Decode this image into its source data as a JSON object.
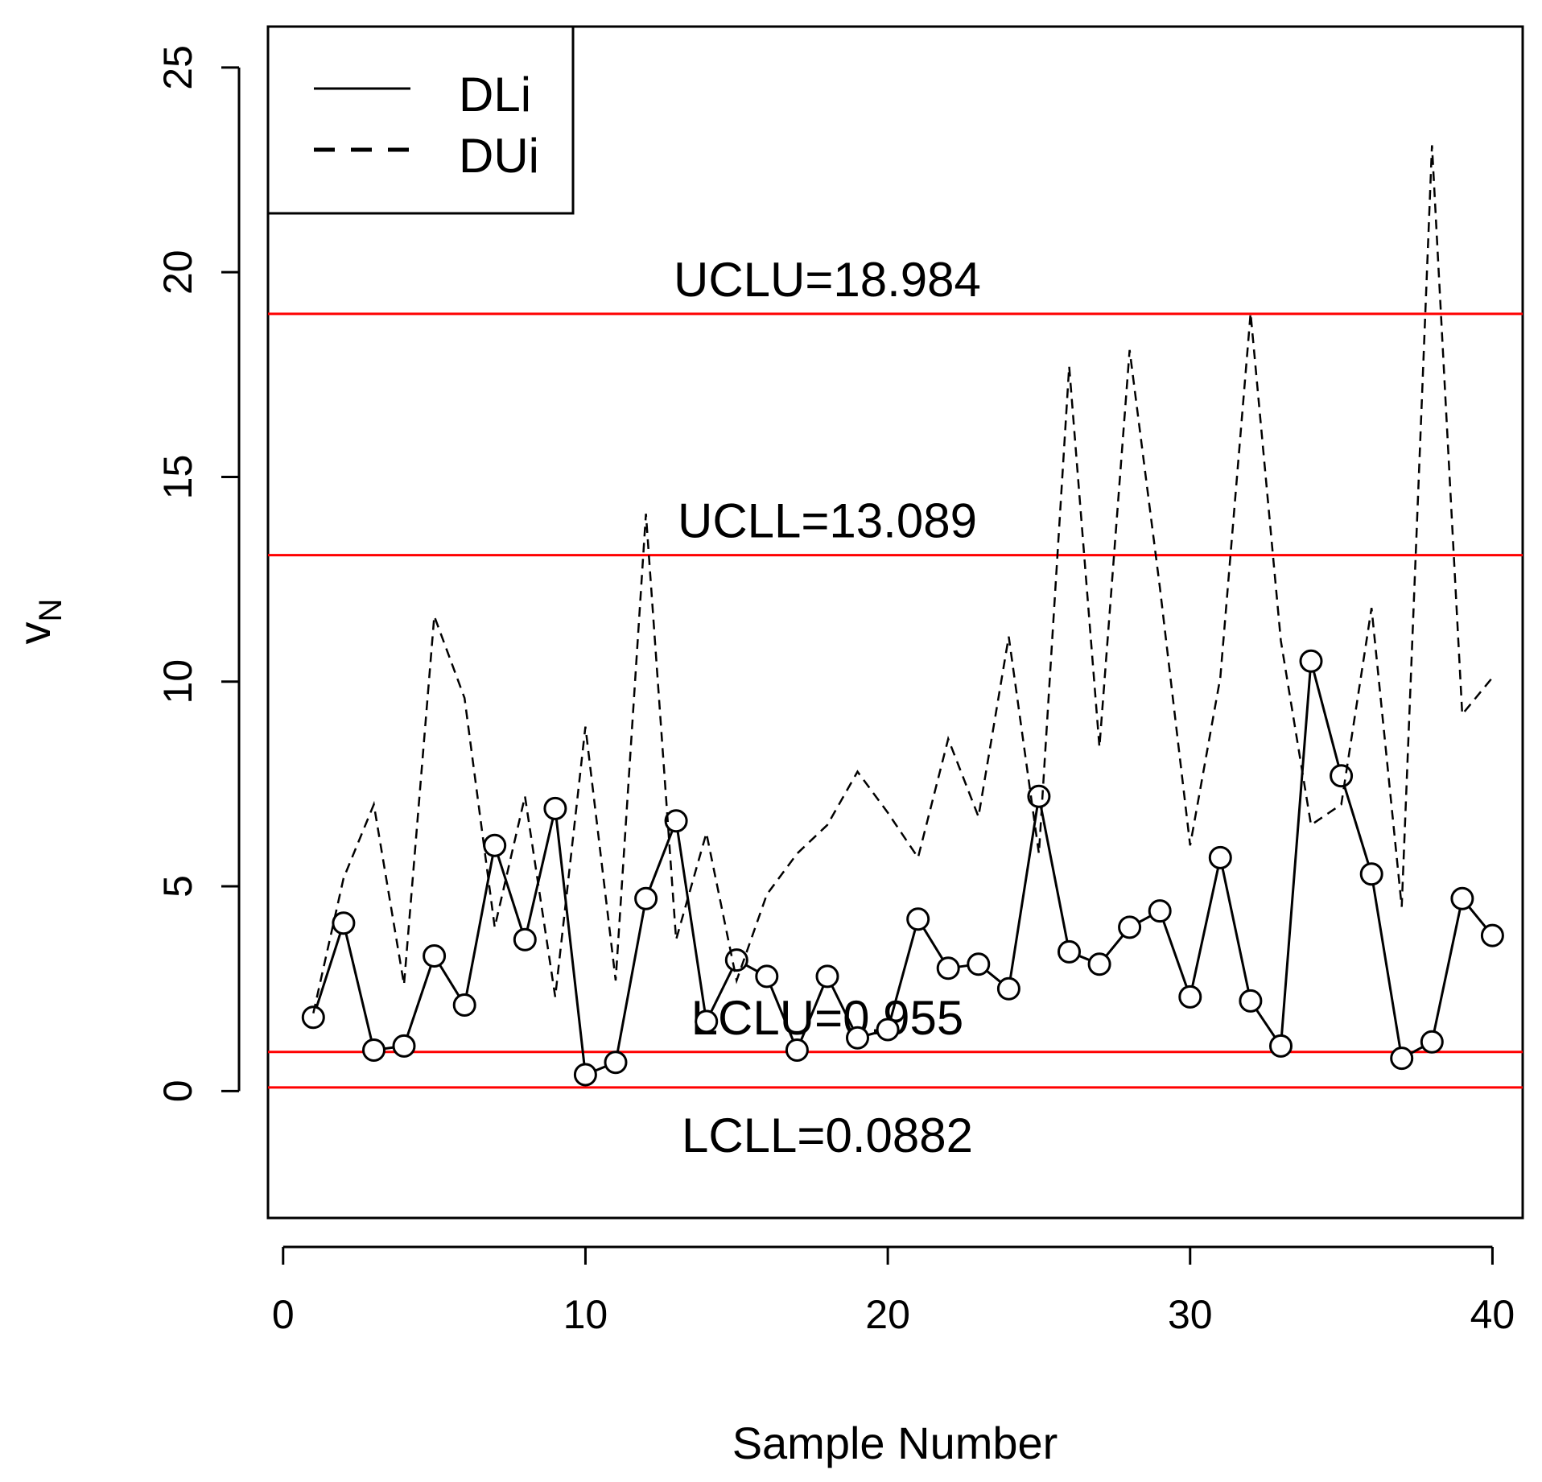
{
  "chart_data": {
    "type": "line",
    "title": "",
    "xlabel": "Sample Number",
    "ylabel": "v",
    "ylabel_subscript": "N",
    "xlim": [
      -0.5,
      41
    ],
    "ylim": [
      -3.1,
      26
    ],
    "xticks": [
      0,
      10,
      20,
      30,
      40
    ],
    "yticks": [
      0,
      5,
      10,
      15,
      20,
      25
    ],
    "xtick_labels": [
      "0",
      "10",
      "20",
      "30",
      "40"
    ],
    "ytick_labels": [
      "0",
      "5",
      "10",
      "15",
      "20",
      "25"
    ],
    "grid": false,
    "legend": {
      "position": "top-left",
      "entries": [
        "DLi",
        "DUi"
      ]
    },
    "control_lines": [
      {
        "name": "UCLU",
        "label": "UCLU=18.984",
        "value": 18.984,
        "color": "#ff0000",
        "label_side": "above"
      },
      {
        "name": "UCLL",
        "label": "UCLL=13.089",
        "value": 13.089,
        "color": "#ff0000",
        "label_side": "above"
      },
      {
        "name": "LCLU",
        "label": "LCLU=0.955",
        "value": 0.955,
        "color": "#ff0000",
        "label_side": "above"
      },
      {
        "name": "LCLL",
        "label": "LCLL=0.0882",
        "value": 0.0882,
        "color": "#ff0000",
        "label_side": "below"
      }
    ],
    "x": [
      1,
      2,
      3,
      4,
      5,
      6,
      7,
      8,
      9,
      10,
      11,
      12,
      13,
      14,
      15,
      16,
      17,
      18,
      19,
      20,
      21,
      22,
      23,
      24,
      25,
      26,
      27,
      28,
      29,
      30,
      31,
      32,
      33,
      34,
      35,
      36,
      37,
      38,
      39,
      40
    ],
    "series": [
      {
        "name": "DLi",
        "style": "solid",
        "markers": "open-circle",
        "values": [
          1.8,
          4.1,
          1.0,
          1.1,
          3.3,
          2.1,
          6.0,
          3.7,
          6.9,
          0.4,
          0.7,
          4.7,
          6.6,
          1.7,
          3.2,
          2.8,
          1.0,
          2.8,
          1.3,
          1.5,
          4.2,
          3.0,
          3.1,
          2.5,
          7.2,
          3.4,
          3.1,
          4.0,
          4.4,
          2.3,
          5.7,
          2.2,
          1.1,
          10.5,
          7.7,
          5.3,
          0.8,
          1.2,
          4.7,
          3.8
        ]
      },
      {
        "name": "DUi",
        "style": "dashed",
        "markers": "none",
        "values": [
          1.9,
          5.2,
          7.0,
          2.6,
          11.6,
          9.6,
          4.0,
          7.2,
          2.3,
          8.9,
          2.7,
          14.1,
          3.7,
          6.3,
          2.7,
          4.8,
          5.8,
          6.5,
          7.8,
          6.8,
          5.7,
          8.6,
          6.7,
          11.1,
          5.8,
          17.7,
          8.4,
          18.1,
          12.3,
          6.0,
          10.1,
          19.0,
          11.0,
          6.5,
          7.0,
          11.8,
          4.5,
          23.1,
          9.2,
          10.1
        ]
      }
    ]
  }
}
